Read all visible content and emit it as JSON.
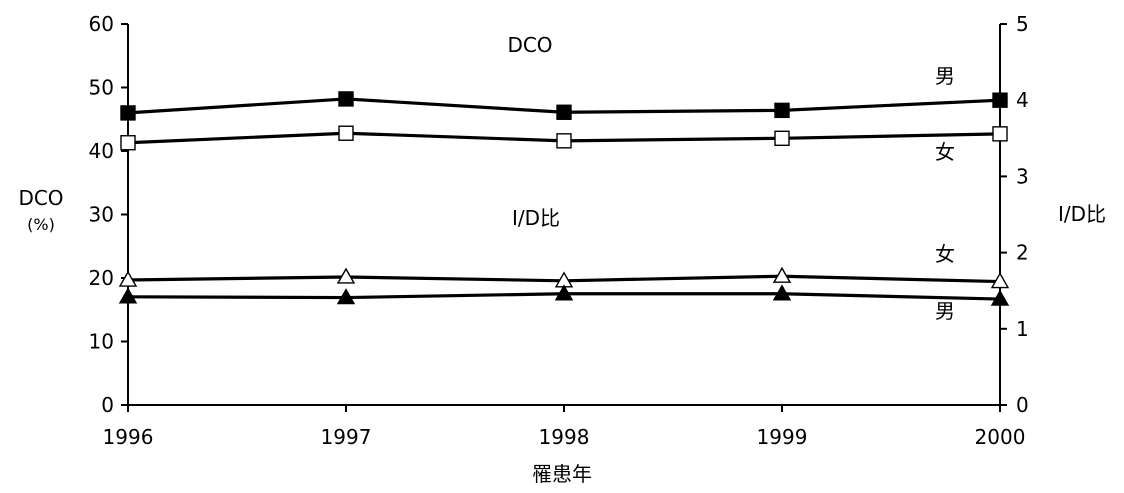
{
  "chart_data": {
    "type": "line",
    "title": "",
    "x": [
      "1996",
      "1997",
      "1998",
      "1999",
      "2000"
    ],
    "xlabel": "罹患年",
    "ylabel_left": [
      "DCO",
      "(%)"
    ],
    "ylabel_right": "I/D比",
    "ylim_left": [
      0,
      60
    ],
    "ylim_right": [
      0,
      5
    ],
    "yticks_left": [
      "0",
      "10",
      "20",
      "30",
      "40",
      "50",
      "60"
    ],
    "yticks_right": [
      "0",
      "1",
      "2",
      "3",
      "4",
      "5"
    ],
    "grid": false,
    "legend": "none",
    "annotations": {
      "dco": "DCO",
      "id_ratio": "I/D比",
      "dco_male": "男",
      "dco_female": "女",
      "id_female": "女",
      "id_male": "男"
    },
    "series": [
      {
        "name": "男",
        "axis": "left",
        "marker": "filled-square",
        "values": [
          46.0,
          48.2,
          46.1,
          46.4,
          48.0
        ]
      },
      {
        "name": "女",
        "axis": "left",
        "marker": "open-square",
        "values": [
          41.3,
          42.8,
          41.6,
          42.0,
          42.7
        ]
      },
      {
        "name": "女",
        "axis": "right",
        "marker": "open-triangle",
        "values": [
          1.64,
          1.68,
          1.63,
          1.69,
          1.62
        ]
      },
      {
        "name": "男",
        "axis": "right",
        "marker": "filled-triangle",
        "values": [
          1.42,
          1.41,
          1.46,
          1.46,
          1.39
        ]
      }
    ]
  }
}
